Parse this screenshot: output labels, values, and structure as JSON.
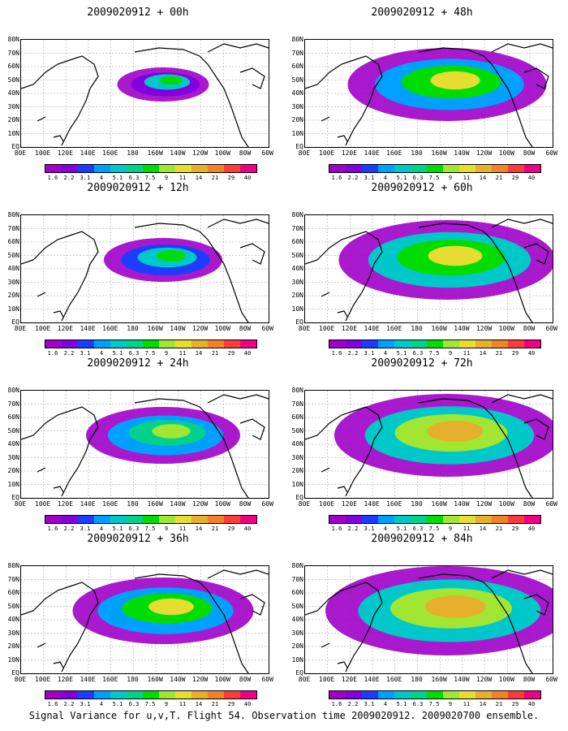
{
  "panels": [
    {
      "title": "2009020912 + 00h",
      "intensity": 0.15
    },
    {
      "title": "2009020912 + 48h",
      "intensity": 0.75
    },
    {
      "title": "2009020912 + 12h",
      "intensity": 0.3
    },
    {
      "title": "2009020912 + 60h",
      "intensity": 0.85
    },
    {
      "title": "2009020912 + 24h",
      "intensity": 0.5
    },
    {
      "title": "2009020912 + 72h",
      "intensity": 0.9
    },
    {
      "title": "2009020912 + 36h",
      "intensity": 0.65
    },
    {
      "title": "2009020912 + 84h",
      "intensity": 1.0
    }
  ],
  "lat_labels": [
    "80N",
    "70N",
    "60N",
    "50N",
    "40N",
    "30N",
    "20N",
    "10N",
    "EQ"
  ],
  "lon_labels": [
    "80E",
    "100E",
    "120E",
    "140E",
    "160E",
    "180",
    "160W",
    "140W",
    "120W",
    "100W",
    "80W",
    "60W"
  ],
  "colorbar": {
    "colors": [
      "#a000c8",
      "#8200dc",
      "#1e3cff",
      "#00a0ff",
      "#00c8c8",
      "#00d28c",
      "#00dc00",
      "#a0e632",
      "#e6dc32",
      "#e6af2d",
      "#f08228",
      "#fa3c3c",
      "#f00082"
    ],
    "labels": [
      "1.6",
      "2.2",
      "3.1",
      "4",
      "5.1",
      "6.3",
      "7.5",
      "9",
      "11",
      "14",
      "21",
      "29",
      "40"
    ]
  },
  "caption": "Signal Variance for u,v,T. Flight 54. Observation time 2009020912. 2009020700 ensemble."
}
